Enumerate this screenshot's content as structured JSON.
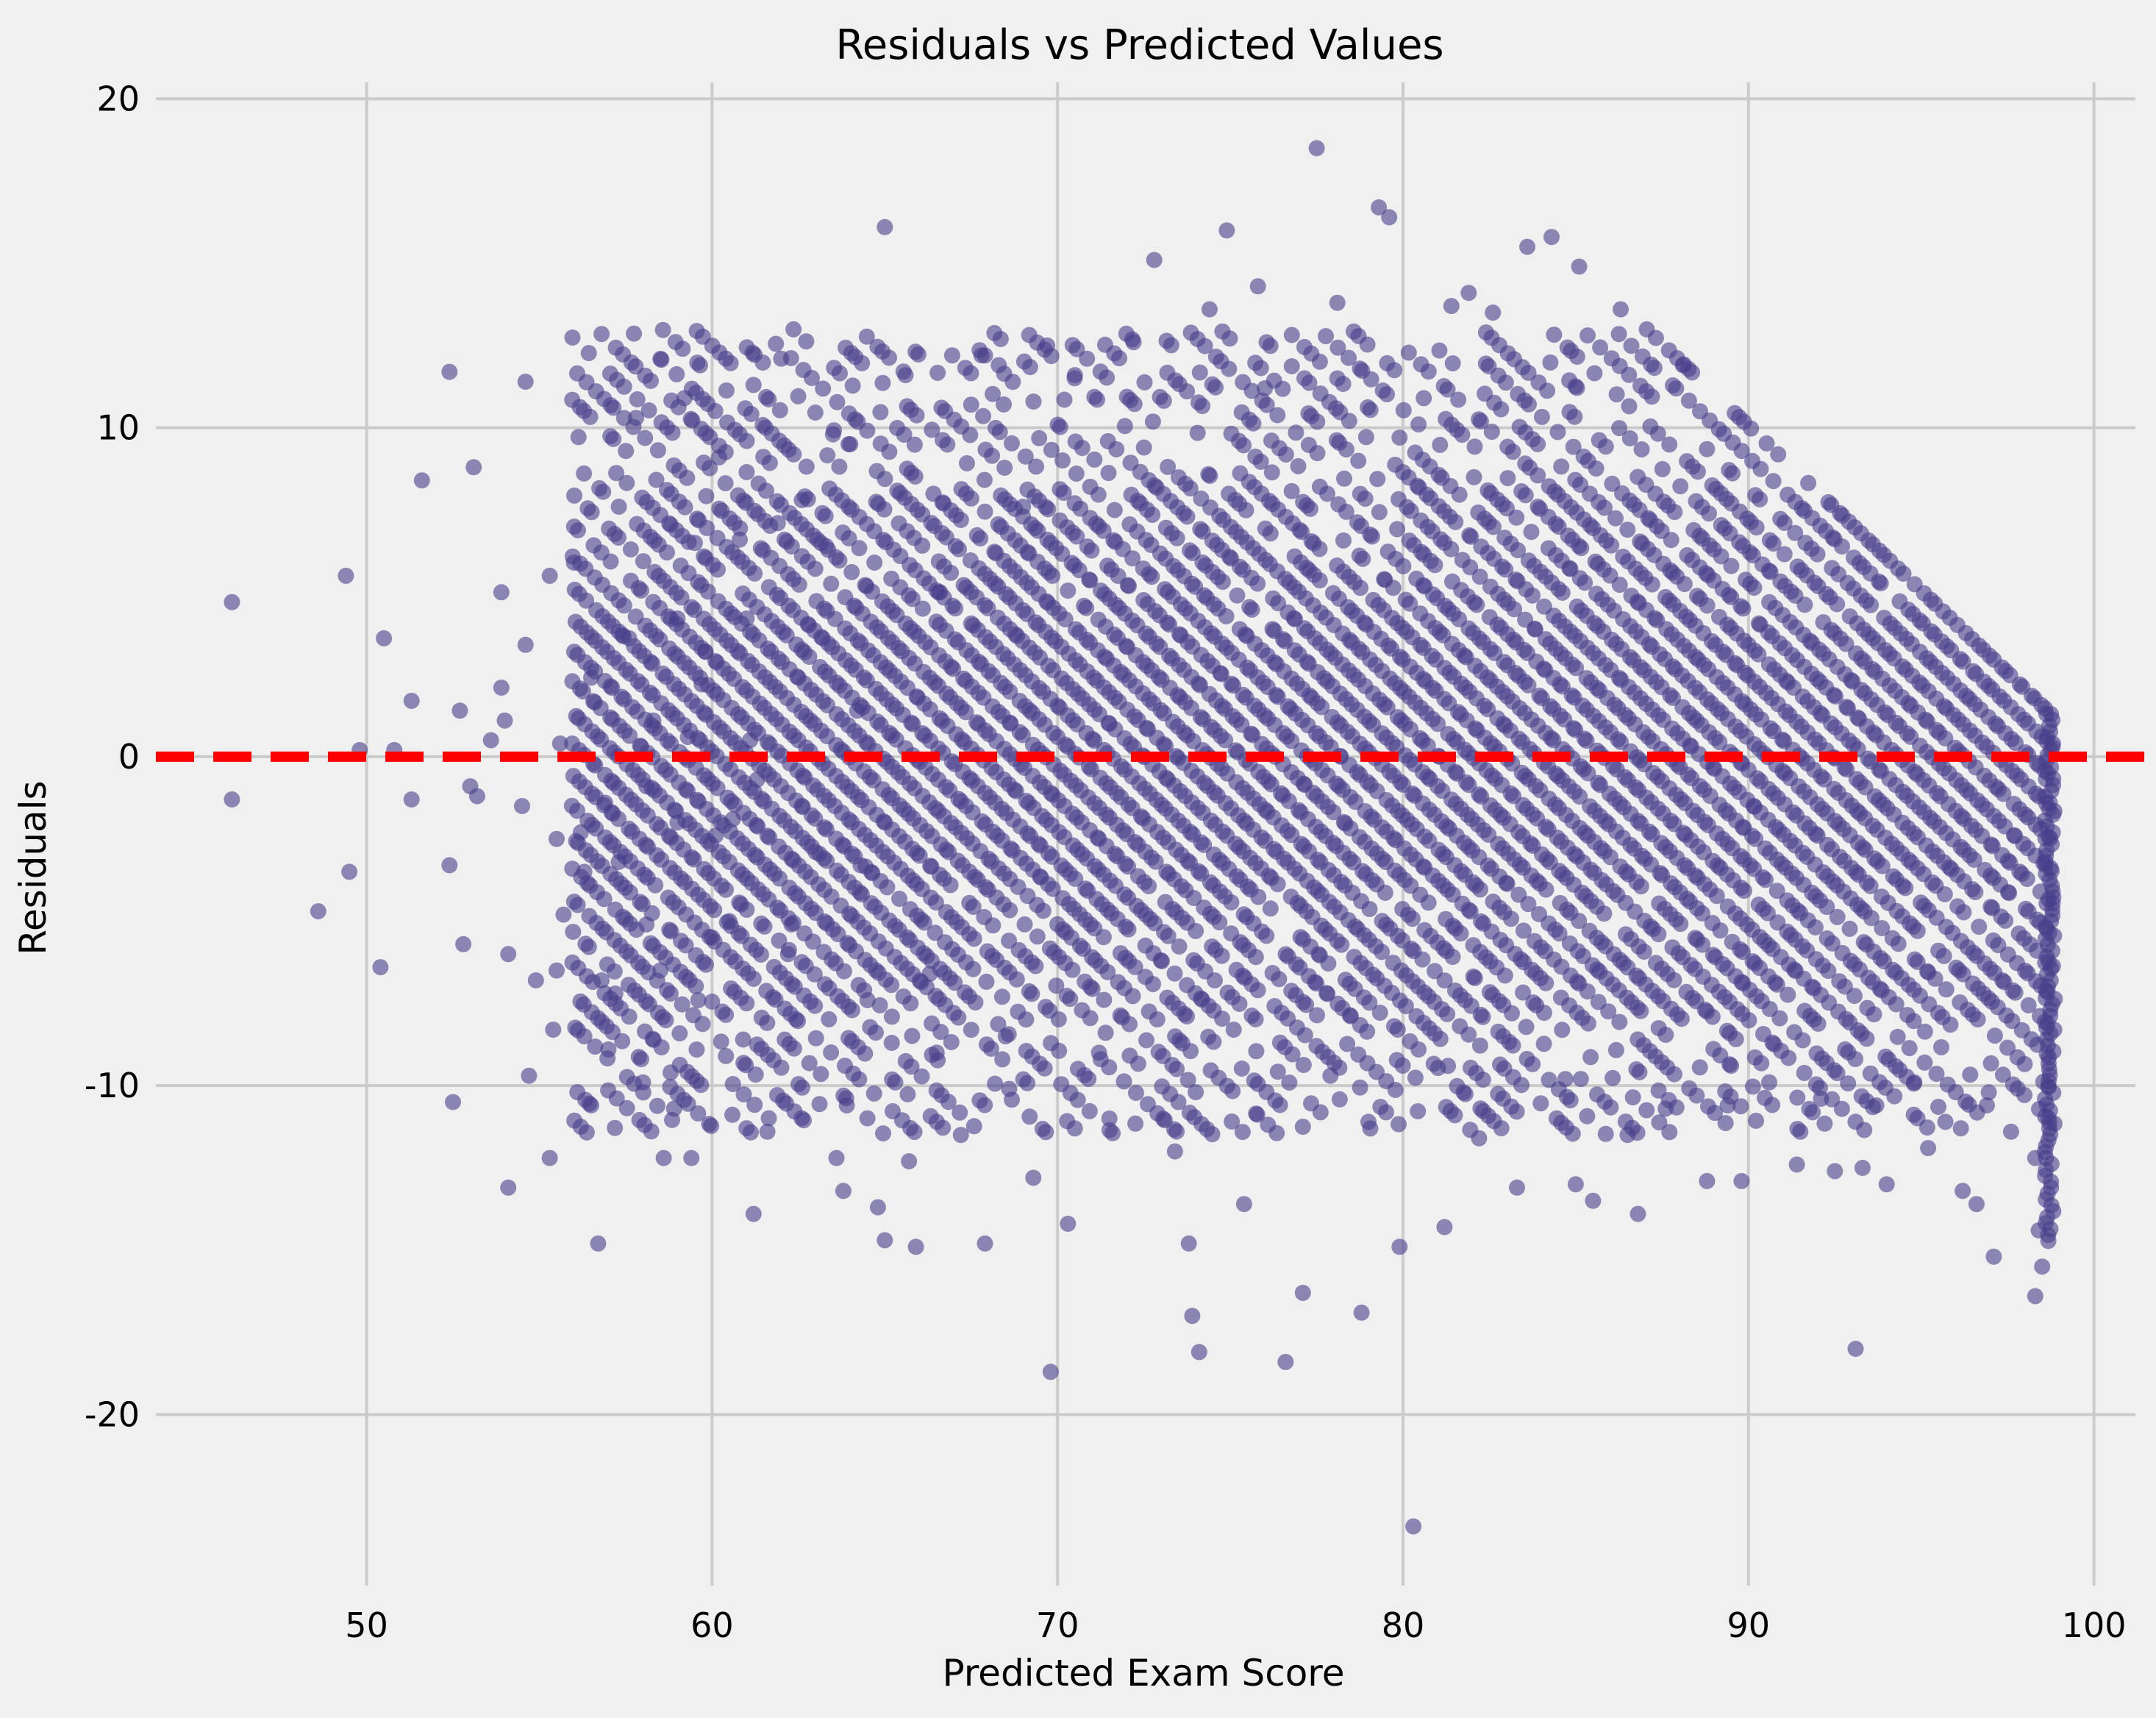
{
  "chart_data": {
    "type": "scatter",
    "title": "Residuals vs Predicted Values",
    "xlabel": "Predicted Exam Score",
    "ylabel": "Residuals",
    "xlim": [
      43.9,
      101.2
    ],
    "ylim": [
      -25.2,
      20.5
    ],
    "xticks": [
      50,
      60,
      70,
      80,
      90,
      100
    ],
    "xtick_labels": [
      "50",
      "60",
      "70",
      "80",
      "90",
      "100"
    ],
    "yticks": [
      20,
      10,
      0,
      -10,
      -20
    ],
    "ytick_labels": [
      "20",
      "10",
      "0",
      "-10",
      "-20"
    ],
    "grid": true,
    "reference_line": {
      "y": 0,
      "style": "dashed",
      "color": "#ff0000"
    },
    "colors": {
      "points": "#483d8b",
      "background": "#f0f0f0",
      "grid": "#cbcbcb",
      "reference": "#ff0000"
    },
    "points": [
      [
        46.1,
        4.7
      ],
      [
        46.1,
        -1.3
      ],
      [
        48.6,
        -4.7
      ],
      [
        49.4,
        5.5
      ],
      [
        49.5,
        -3.5
      ],
      [
        49.8,
        0.2
      ],
      [
        50.4,
        -6.4
      ],
      [
        50.5,
        3.6
      ],
      [
        50.8,
        0.2
      ],
      [
        51.3,
        1.7
      ],
      [
        51.3,
        -1.3
      ],
      [
        51.6,
        8.4
      ],
      [
        52.4,
        11.7
      ],
      [
        52.4,
        -3.3
      ],
      [
        52.5,
        -10.5
      ],
      [
        52.7,
        1.4
      ],
      [
        52.8,
        -5.7
      ],
      [
        53.0,
        -0.9
      ],
      [
        53.1,
        8.8
      ],
      [
        53.2,
        -1.2
      ],
      [
        53.6,
        0.5
      ],
      [
        53.9,
        5.0
      ],
      [
        53.9,
        2.1
      ],
      [
        54.0,
        1.1
      ],
      [
        54.1,
        -6.0
      ],
      [
        54.1,
        -13.1
      ],
      [
        54.5,
        -1.5
      ],
      [
        54.6,
        11.4
      ],
      [
        54.6,
        3.4
      ],
      [
        54.7,
        -9.7
      ],
      [
        54.9,
        -6.8
      ],
      [
        55.3,
        -12.2
      ],
      [
        55.3,
        5.5
      ],
      [
        55.4,
        -8.3
      ],
      [
        55.5,
        -2.5
      ],
      [
        55.5,
        -6.5
      ],
      [
        55.6,
        0.4
      ],
      [
        55.7,
        -4.8
      ],
      [
        56.0,
        5.9
      ],
      [
        56.1,
        -10.2
      ],
      [
        56.2,
        -2.3
      ],
      [
        56.3,
        -3.5
      ],
      [
        56.5,
        -10.6
      ],
      [
        56.5,
        2.4
      ],
      [
        56.7,
        -14.8
      ],
      [
        56.8,
        -6.8
      ],
      [
        56.9,
        -1.4
      ],
      [
        57.0,
        -8.9
      ],
      [
        57.2,
        -7.2
      ],
      [
        57.3,
        -3.2
      ],
      [
        57.4,
        3.7
      ],
      [
        57.6,
        3.6
      ],
      [
        57.8,
        10.3
      ],
      [
        58.0,
        -9.9
      ],
      [
        58.1,
        -5.1
      ],
      [
        58.1,
        -0.9
      ],
      [
        58.3,
        1.1
      ],
      [
        58.5,
        -6.5
      ],
      [
        58.6,
        -12.2
      ],
      [
        58.8,
        -9.6
      ],
      [
        58.9,
        -10.7
      ],
      [
        59.0,
        4.2
      ],
      [
        59.0,
        -2.0
      ],
      [
        59.2,
        10.9
      ],
      [
        59.3,
        0.6
      ],
      [
        59.4,
        -12.2
      ],
      [
        59.5,
        6.5
      ],
      [
        59.6,
        -7.4
      ],
      [
        59.7,
        2.2
      ],
      [
        59.8,
        3.2
      ],
      [
        60.0,
        -5.5
      ],
      [
        60.1,
        -2.4
      ],
      [
        60.2,
        9.1
      ],
      [
        60.4,
        -9.1
      ],
      [
        60.6,
        -1.9
      ],
      [
        60.8,
        6.6
      ],
      [
        60.9,
        -8.6
      ],
      [
        61.1,
        0.5
      ],
      [
        61.2,
        -13.9
      ],
      [
        61.3,
        -0.7
      ],
      [
        61.6,
        -11.4
      ],
      [
        61.9,
        7.1
      ],
      [
        62.0,
        12.1
      ],
      [
        62.3,
        -5.1
      ],
      [
        62.6,
        7.8
      ],
      [
        63.0,
        -2.9
      ],
      [
        63.3,
        6.4
      ],
      [
        63.5,
        9.8
      ],
      [
        63.6,
        -12.2
      ],
      [
        63.8,
        -13.2
      ],
      [
        63.9,
        -10.6
      ],
      [
        64.0,
        9.5
      ],
      [
        64.2,
        1.4
      ],
      [
        64.5,
        -7.4
      ],
      [
        64.8,
        -13.7
      ],
      [
        65.0,
        16.1
      ],
      [
        65.0,
        -14.7
      ],
      [
        65.2,
        -8.7
      ],
      [
        65.6,
        11.6
      ],
      [
        65.7,
        -12.3
      ],
      [
        65.9,
        -14.9
      ],
      [
        66.3,
        -6.6
      ],
      [
        66.6,
        5.0
      ],
      [
        67.2,
        -11.5
      ],
      [
        67.8,
        12.2
      ],
      [
        67.9,
        -14.8
      ],
      [
        68.3,
        11.9
      ],
      [
        68.6,
        -10.1
      ],
      [
        69.3,
        -12.8
      ],
      [
        69.7,
        12.5
      ],
      [
        69.8,
        -18.7
      ],
      [
        70.3,
        -14.2
      ],
      [
        70.5,
        11.6
      ],
      [
        71.2,
        -9.0
      ],
      [
        72.2,
        12.6
      ],
      [
        72.8,
        15.1
      ],
      [
        73.4,
        -12.0
      ],
      [
        73.8,
        -14.8
      ],
      [
        73.9,
        -17.0
      ],
      [
        74.1,
        -18.1
      ],
      [
        74.4,
        13.6
      ],
      [
        74.9,
        16.0
      ],
      [
        75.4,
        -13.6
      ],
      [
        75.8,
        14.3
      ],
      [
        76.6,
        -18.4
      ],
      [
        77.1,
        -16.3
      ],
      [
        77.5,
        18.5
      ],
      [
        78.1,
        13.8
      ],
      [
        78.8,
        -16.9
      ],
      [
        79.3,
        16.7
      ],
      [
        79.6,
        16.4
      ],
      [
        79.9,
        -14.9
      ],
      [
        80.3,
        -23.4
      ],
      [
        81.2,
        -14.3
      ],
      [
        81.4,
        13.7
      ],
      [
        81.9,
        14.1
      ],
      [
        82.6,
        13.5
      ],
      [
        83.3,
        -13.1
      ],
      [
        83.6,
        15.5
      ],
      [
        84.3,
        15.8
      ],
      [
        85.0,
        -13.0
      ],
      [
        85.1,
        14.9
      ],
      [
        85.5,
        -13.5
      ],
      [
        86.3,
        13.6
      ],
      [
        86.8,
        -13.9
      ],
      [
        88.1,
        11.9
      ],
      [
        88.8,
        -12.9
      ],
      [
        89.8,
        -12.9
      ],
      [
        91.4,
        -12.4
      ],
      [
        92.5,
        -12.6
      ],
      [
        93.1,
        -18.0
      ],
      [
        93.3,
        -12.5
      ],
      [
        94.0,
        -13.0
      ],
      [
        95.2,
        -11.9
      ],
      [
        96.2,
        -13.2
      ],
      [
        96.6,
        -13.6
      ],
      [
        97.1,
        -15.2
      ],
      [
        98.3,
        -16.4
      ],
      [
        98.5,
        -15.5
      ],
      [
        98.4,
        -14.4
      ],
      [
        60.5,
        -5.0
      ],
      [
        61.0,
        4.2
      ],
      [
        62.2,
        -6.0
      ],
      [
        63.2,
        3.6
      ],
      [
        64.3,
        -3.3
      ],
      [
        66.5,
        -9.0
      ],
      [
        68.5,
        -8.5
      ],
      [
        69.0,
        7.6
      ],
      [
        71.5,
        -11.0
      ],
      [
        72.5,
        9.4
      ],
      [
        74.0,
        -10.2
      ],
      [
        76.0,
        11.2
      ],
      [
        77.9,
        -9.7
      ],
      [
        79.0,
        -11.1
      ],
      [
        80.6,
        10.9
      ],
      [
        81.3,
        -9.4
      ],
      [
        82.2,
        -11.6
      ],
      [
        84.7,
        -9.8
      ],
      [
        86.5,
        -11.5
      ],
      [
        87.6,
        -10.7
      ],
      [
        88.5,
        -10.3
      ],
      [
        89.4,
        -10.6
      ],
      [
        90.6,
        -9.9
      ],
      [
        92.1,
        -10.4
      ],
      [
        93.7,
        -10.6
      ],
      [
        94.8,
        -9.9
      ],
      [
        95.7,
        -11.1
      ],
      [
        96.9,
        -10.6
      ],
      [
        97.6,
        -11.4
      ],
      [
        98.3,
        -12.2
      ]
    ],
    "stripe_points": {
      "note": "diagonal bands of residuals; each list is [predicted, residual] sampled along a band",
      "bands": []
    }
  }
}
